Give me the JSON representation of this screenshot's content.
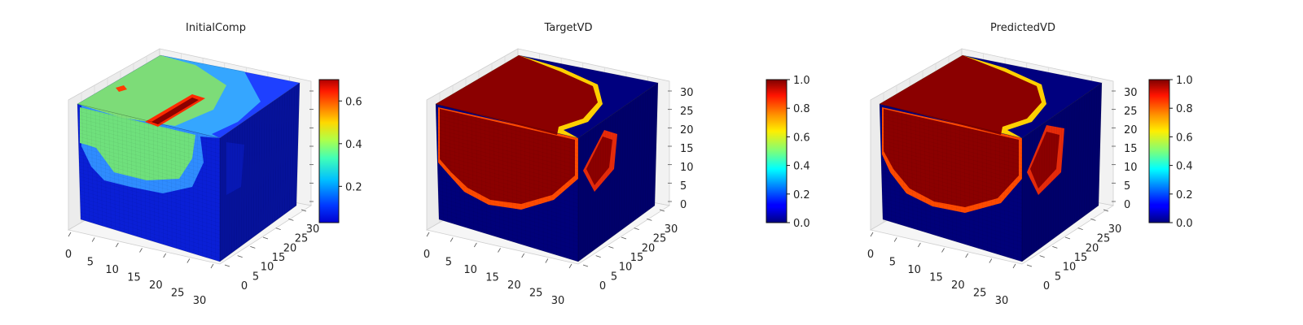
{
  "chart_data": [
    {
      "type": "voxel-3d",
      "title": "InitialComp",
      "x_ticks": [
        "0",
        "5",
        "10",
        "15",
        "20",
        "25",
        "30"
      ],
      "y_ticks": [
        "0",
        "5",
        "10",
        "15",
        "20",
        "25",
        "30"
      ],
      "z_ticks": [],
      "colormap": "jet",
      "colorbar": {
        "range": [
          0.03,
          0.7
        ],
        "ticks": [
          "0.2",
          "0.4",
          "0.6"
        ],
        "tick_values": [
          0.2,
          0.4,
          0.6
        ]
      }
    },
    {
      "type": "voxel-3d",
      "title": "TargetVD",
      "x_ticks": [
        "0",
        "5",
        "10",
        "15",
        "20",
        "25",
        "30"
      ],
      "y_ticks": [
        "0",
        "5",
        "10",
        "15",
        "20",
        "25",
        "30"
      ],
      "z_ticks": [
        "0",
        "5",
        "10",
        "15",
        "20",
        "25",
        "30"
      ],
      "colormap": "jet",
      "colorbar": {
        "range": [
          0,
          1
        ],
        "ticks": [
          "0.0",
          "0.2",
          "0.4",
          "0.6",
          "0.8",
          "1.0"
        ],
        "tick_values": [
          0,
          0.2,
          0.4,
          0.6,
          0.8,
          1.0
        ]
      }
    },
    {
      "type": "voxel-3d",
      "title": "PredictedVD",
      "x_ticks": [
        "0",
        "5",
        "10",
        "15",
        "20",
        "25",
        "30"
      ],
      "y_ticks": [
        "0",
        "5",
        "10",
        "15",
        "20",
        "25",
        "30"
      ],
      "z_ticks": [
        "0",
        "5",
        "10",
        "15",
        "20",
        "25",
        "30"
      ],
      "colormap": "jet",
      "colorbar": {
        "range": [
          0,
          1
        ],
        "ticks": [
          "0.0",
          "0.2",
          "0.4",
          "0.6",
          "0.8",
          "1.0"
        ],
        "tick_values": [
          0,
          0.2,
          0.4,
          0.6,
          0.8,
          1.0
        ]
      }
    }
  ]
}
